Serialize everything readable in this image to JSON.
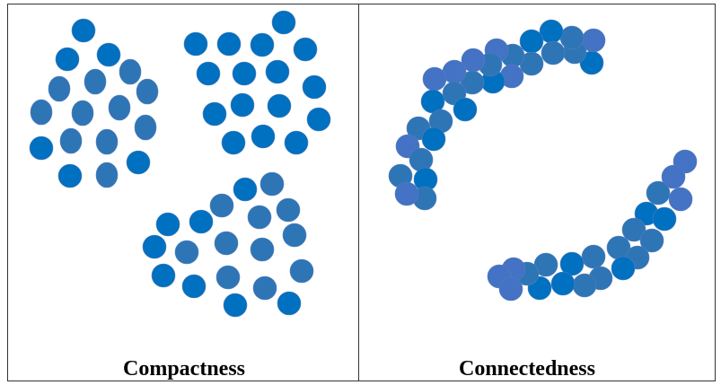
{
  "panels": [
    {
      "caption": "Compactness"
    },
    {
      "caption": "Connectedness"
    }
  ],
  "colors": {
    "dot_dark": "#0070C0",
    "dot_medium": "#2E75B6",
    "dot_light": "#4472C4",
    "border": "#333333",
    "text": "#000000"
  }
}
